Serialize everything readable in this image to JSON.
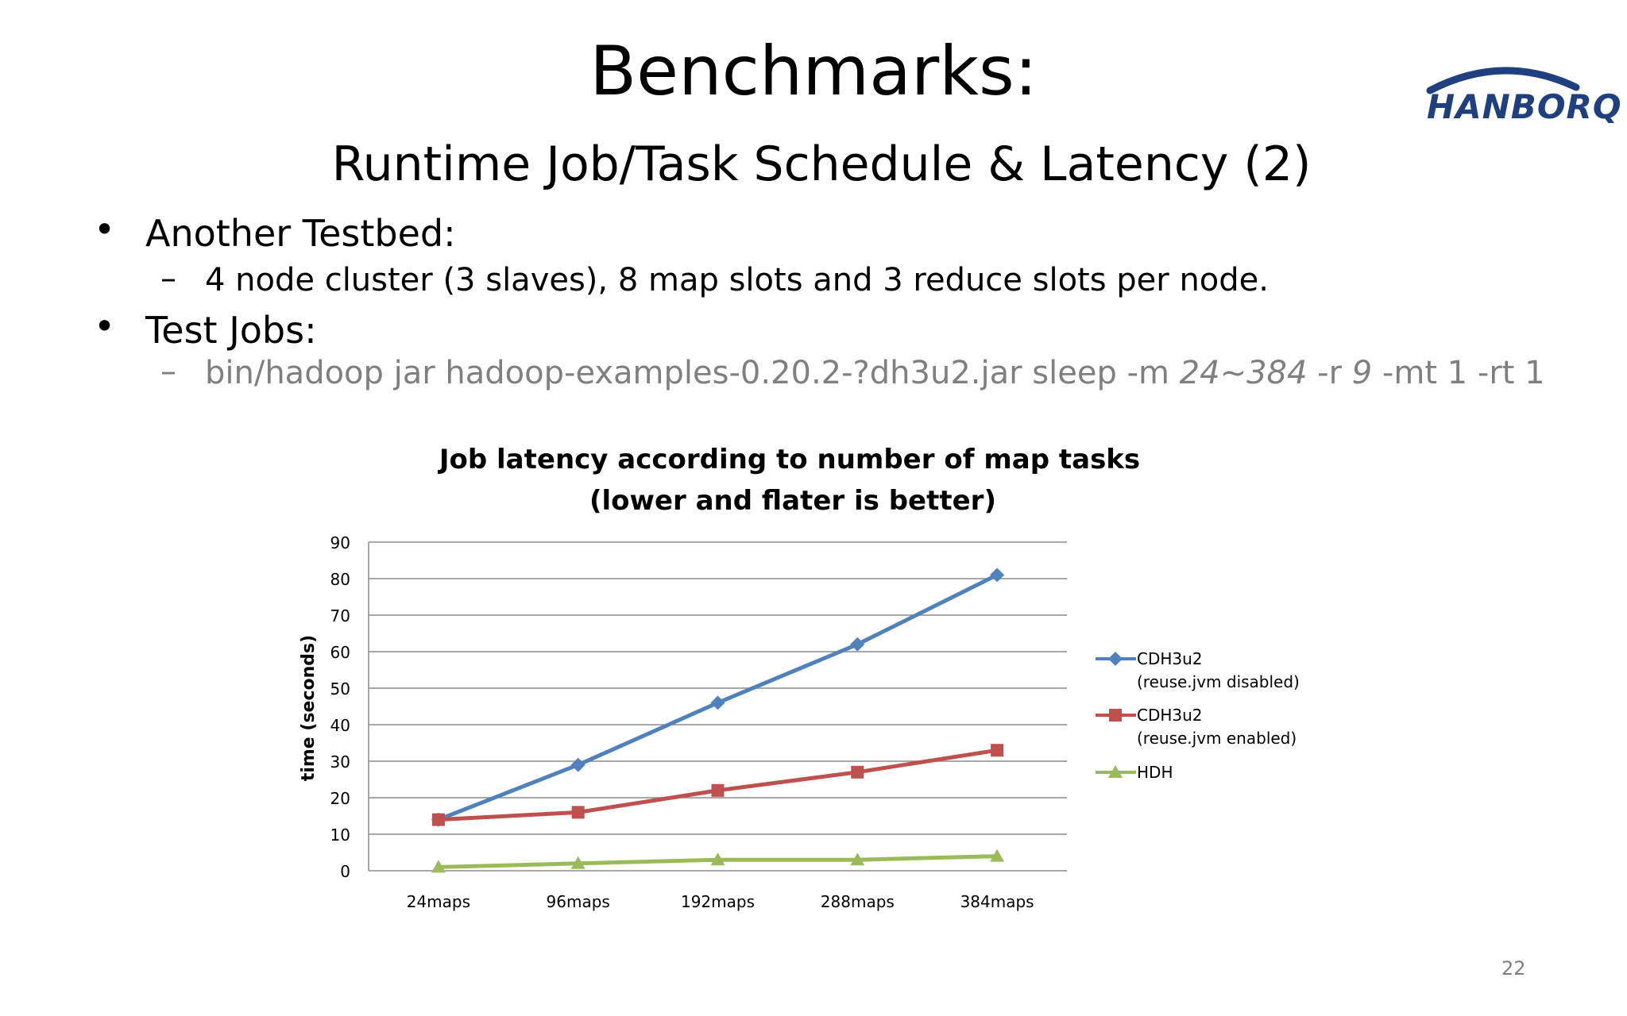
{
  "slide": {
    "title": "Benchmarks:",
    "subtitle": "Runtime Job/Task Schedule & Latency (2)",
    "logo_text": "HANBORQ",
    "page_number": "22",
    "bullets": [
      {
        "label": "Another Testbed:"
      },
      {
        "label": "4 node cluster (3 slaves), 8 map slots and 3 reduce slots per node."
      },
      {
        "label": "Test Jobs:"
      }
    ],
    "command": {
      "prefix": "bin/hadoop jar hadoop-examples-0.20.2-?dh3u2.jar sleep -m ",
      "maps_italic": "24~384",
      "mid": " -r ",
      "reduces_italic": "9",
      "suffix": " -mt 1 -rt 1"
    },
    "bullet_glyph": "•",
    "dash_glyph": "–"
  },
  "colors": {
    "grid": "#8c8c8c",
    "cdh_disabled": "#4f81bd",
    "cdh_enabled": "#c0504d",
    "hdh": "#9bbb59",
    "logo": "#1f3f7f"
  },
  "chart_data": {
    "type": "line",
    "title": "Job latency according to number of map tasks",
    "subtitle": "(lower and flater is better)",
    "xlabel": "",
    "ylabel": "time (seconds)",
    "categories": [
      "24maps",
      "96maps",
      "192maps",
      "288maps",
      "384maps"
    ],
    "ylim": [
      0,
      90
    ],
    "yticks": [
      0,
      10,
      20,
      30,
      40,
      50,
      60,
      70,
      80,
      90
    ],
    "grid": true,
    "legend_position": "right",
    "series": [
      {
        "name": "CDH3u2",
        "name_line2": "(reuse.jvm disabled)",
        "marker": "diamond",
        "color": "#4f81bd",
        "values": [
          14,
          29,
          46,
          62,
          81
        ]
      },
      {
        "name": "CDH3u2",
        "name_line2": "(reuse.jvm enabled)",
        "marker": "square",
        "color": "#c0504d",
        "values": [
          14,
          16,
          22,
          27,
          33
        ]
      },
      {
        "name": "HDH",
        "name_line2": "",
        "marker": "triangle",
        "color": "#9bbb59",
        "values": [
          1,
          2,
          3,
          3,
          4
        ]
      }
    ]
  }
}
